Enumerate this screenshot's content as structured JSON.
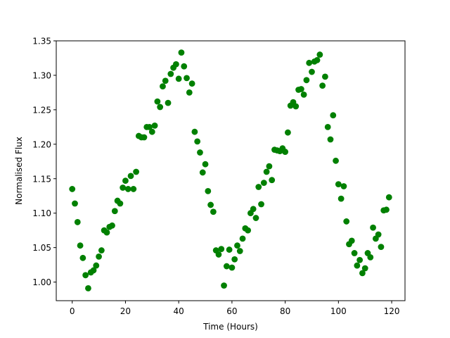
{
  "chart_data": {
    "type": "scatter",
    "title": "",
    "xlabel": "Time (Hours)",
    "ylabel": "Normalised Flux",
    "xlim": [
      -6,
      125
    ],
    "ylim": [
      0.973,
      1.35
    ],
    "xticks": [
      0,
      20,
      40,
      60,
      80,
      100,
      120
    ],
    "yticks": [
      1.0,
      1.05,
      1.1,
      1.15,
      1.2,
      1.25,
      1.3,
      1.35
    ],
    "xtick_labels": [
      "0",
      "20",
      "40",
      "60",
      "80",
      "100",
      "120"
    ],
    "ytick_labels": [
      "1.00",
      "1.05",
      "1.10",
      "1.15",
      "1.20",
      "1.25",
      "1.30",
      "1.35"
    ],
    "grid": false,
    "legend": "none",
    "marker_color": "#008000",
    "series": [
      {
        "x": [
          0,
          1,
          2,
          3,
          4,
          5,
          6,
          7,
          8,
          9,
          10,
          11,
          12,
          13,
          14,
          15,
          16,
          17,
          18,
          19,
          20,
          21,
          22,
          23,
          24,
          25,
          26,
          27,
          28,
          29,
          30,
          31,
          32,
          33,
          34,
          35,
          36,
          37,
          38,
          39,
          40,
          41,
          42,
          43,
          44,
          45,
          46,
          47,
          48,
          49,
          50,
          51,
          52,
          53,
          54,
          55,
          56,
          57,
          58,
          59,
          60,
          61,
          62,
          63,
          64,
          65,
          66,
          67,
          68,
          69,
          70,
          71,
          72,
          73,
          74,
          75,
          76,
          77,
          78,
          79,
          80,
          81,
          82,
          83,
          84,
          85,
          86,
          87,
          88,
          89,
          90,
          91,
          92,
          93,
          94,
          95,
          96,
          97,
          98,
          99,
          100,
          101,
          102,
          103,
          104,
          105,
          106,
          107,
          108,
          109,
          110,
          111,
          112,
          113,
          114,
          115,
          116,
          117,
          118,
          119
        ],
        "y": [
          1.135,
          1.114,
          1.087,
          1.053,
          1.035,
          1.01,
          0.991,
          1.014,
          1.017,
          1.024,
          1.037,
          1.046,
          1.075,
          1.072,
          1.08,
          1.082,
          1.103,
          1.118,
          1.114,
          1.137,
          1.147,
          1.135,
          1.154,
          1.135,
          1.16,
          1.212,
          1.21,
          1.21,
          1.225,
          1.225,
          1.218,
          1.227,
          1.262,
          1.254,
          1.284,
          1.292,
          1.26,
          1.302,
          1.311,
          1.316,
          1.295,
          1.333,
          1.313,
          1.296,
          1.275,
          1.288,
          1.218,
          1.204,
          1.188,
          1.159,
          1.171,
          1.132,
          1.112,
          1.102,
          1.046,
          1.04,
          1.048,
          0.995,
          1.023,
          1.047,
          1.021,
          1.033,
          1.053,
          1.045,
          1.063,
          1.078,
          1.075,
          1.1,
          1.106,
          1.093,
          1.138,
          1.113,
          1.144,
          1.16,
          1.168,
          1.148,
          1.192,
          1.191,
          1.19,
          1.194,
          1.189,
          1.217,
          1.256,
          1.261,
          1.255,
          1.279,
          1.28,
          1.272,
          1.293,
          1.318,
          1.305,
          1.32,
          1.322,
          1.33,
          1.285,
          1.298,
          1.225,
          1.207,
          1.242,
          1.176,
          1.142,
          1.121,
          1.139,
          1.088,
          1.055,
          1.06,
          1.042,
          1.024,
          1.032,
          1.013,
          1.02,
          1.042,
          1.036,
          1.079,
          1.063,
          1.069,
          1.051,
          1.104,
          1.105,
          1.123
        ]
      }
    ]
  }
}
